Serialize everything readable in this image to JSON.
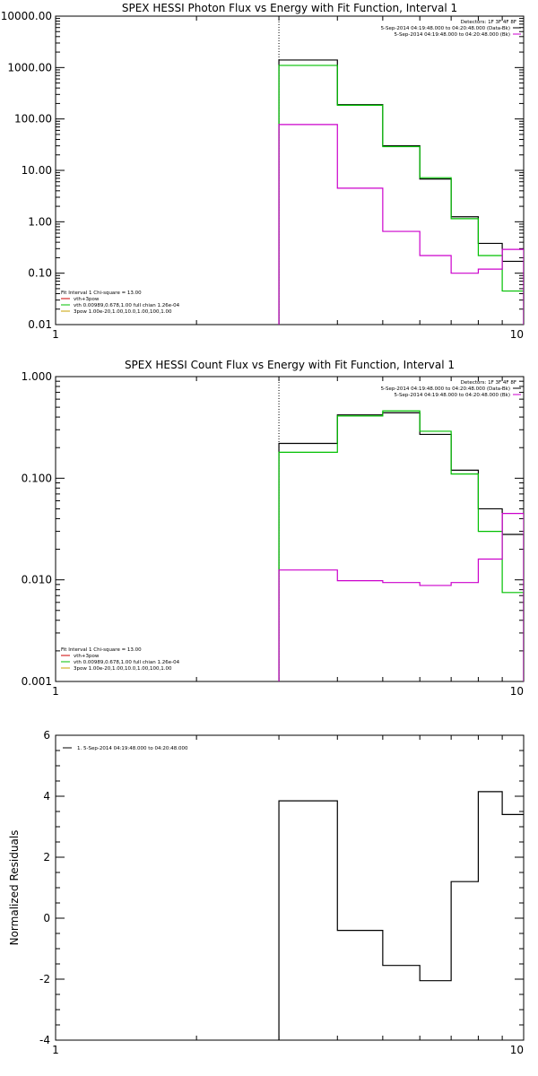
{
  "chart_data": [
    {
      "type": "line",
      "title": "SPEX HESSI Photon Flux vs Energy with Fit Function, Interval 1",
      "xscale": "log",
      "yscale": "log",
      "xlim": [
        1,
        10
      ],
      "ylim": [
        0.01,
        10000
      ],
      "x_ticks": [
        1,
        10
      ],
      "x_tick_labels": [
        "1",
        "10"
      ],
      "y_ticks": [
        0.01,
        0.1,
        1,
        10,
        100,
        1000,
        10000
      ],
      "y_tick_labels": [
        "0.01",
        "0.10",
        "1.00",
        "10.00",
        "100.00",
        "1000.00",
        "10000.00"
      ],
      "ylabel": "",
      "vline_x": 3,
      "bin_edges": [
        3,
        4,
        5,
        6,
        7,
        8,
        9,
        10
      ],
      "series": [
        {
          "color": "#000000",
          "values": [
            1400,
            190,
            30,
            6.8,
            1.25,
            0.38,
            0.17
          ]
        },
        {
          "color": "#00c000",
          "values": [
            1100,
            185,
            29,
            7.2,
            1.15,
            0.22,
            0.045
          ]
        },
        {
          "color": "#cc00cc",
          "values": [
            78,
            4.5,
            0.65,
            0.22,
            0.1,
            0.12,
            0.29
          ]
        }
      ],
      "legend_top": {
        "title": "Detectors: 1F 3F 4F 8F",
        "entries": [
          {
            "text": "5-Sep-2014 04:19:48.000 to 04:20:48.000 (Data-Bk)",
            "color": "#000000"
          },
          {
            "text": "5-Sep-2014 04:19:48.000 to 04:20:48.000 (Bk)",
            "color": "#cc00cc"
          }
        ]
      },
      "legend_bottom": [
        {
          "text": "Fit Interval 1    Chi-square = 13.00",
          "color": ""
        },
        {
          "text": "vth+3pow",
          "color": "#cc0000"
        },
        {
          "text": "vth 0.00989,0.678,1.00   full chian 1.26e-04",
          "color": "#00c000"
        },
        {
          "text": "3pow 1.00e-20,1.00,10.0,1.00,100,1.00",
          "color": "#c8a000"
        }
      ]
    },
    {
      "type": "line",
      "title": "SPEX HESSI Count Flux vs Energy with Fit Function, Interval 1",
      "xscale": "log",
      "yscale": "log",
      "xlim": [
        1,
        10
      ],
      "ylim": [
        0.001,
        1
      ],
      "x_ticks": [
        1,
        10
      ],
      "x_tick_labels": [
        "1",
        "10"
      ],
      "y_ticks": [
        0.001,
        0.01,
        0.1,
        1
      ],
      "y_tick_labels": [
        "0.001",
        "0.010",
        "0.100",
        "1.000"
      ],
      "ylabel": "",
      "vline_x": 3,
      "bin_edges": [
        3,
        4,
        5,
        6,
        7,
        8,
        9,
        10
      ],
      "series": [
        {
          "color": "#000000",
          "values": [
            0.22,
            0.42,
            0.44,
            0.27,
            0.12,
            0.05,
            0.028
          ]
        },
        {
          "color": "#00c000",
          "values": [
            0.18,
            0.41,
            0.46,
            0.29,
            0.11,
            0.03,
            0.0075
          ]
        },
        {
          "color": "#cc00cc",
          "values": [
            0.0125,
            0.0098,
            0.0094,
            0.0088,
            0.0094,
            0.016,
            0.045
          ]
        }
      ],
      "legend_top": {
        "title": "Detectors: 1F 3F 4F 8F",
        "entries": [
          {
            "text": "5-Sep-2014 04:19:48.000 to 04:20:48.000 (Data-Bk)",
            "color": "#000000"
          },
          {
            "text": "5-Sep-2014 04:19:48.000 to 04:20:48.000 (Bk)",
            "color": "#cc00cc"
          }
        ]
      },
      "legend_bottom": [
        {
          "text": "Fit Interval 1    Chi-square = 13.00",
          "color": ""
        },
        {
          "text": "vth+3pow",
          "color": "#cc0000"
        },
        {
          "text": "vth 0.00989,0.678,1.00   full chian 1.26e-04",
          "color": "#00c000"
        },
        {
          "text": "3pow 1.00e-20,1.00,10.0,1.00,100,1.00",
          "color": "#c8a000"
        }
      ]
    },
    {
      "type": "line",
      "title": "",
      "xscale": "log",
      "yscale": "linear",
      "xlim": [
        1,
        10
      ],
      "ylim": [
        -4,
        6
      ],
      "x_ticks": [
        1,
        10
      ],
      "x_tick_labels": [
        "1",
        "10"
      ],
      "y_ticks": [
        -4,
        -2,
        0,
        2,
        4,
        6
      ],
      "y_tick_labels": [
        "-4",
        "-2",
        "0",
        "2",
        "4",
        "6"
      ],
      "ylabel": "Normalized Residuals",
      "bin_edges": [
        3,
        4,
        5,
        6,
        7,
        8,
        9,
        10
      ],
      "series": [
        {
          "color": "#000000",
          "values": [
            3.85,
            -0.4,
            -1.55,
            -2.05,
            1.2,
            4.15,
            3.4
          ]
        }
      ],
      "legend_top": {
        "title": "",
        "entries": [
          {
            "text": "1.  5-Sep-2014 04:19:48.000 to 04:20:48.000",
            "color": "#000000"
          }
        ]
      },
      "legend_bottom": []
    }
  ]
}
